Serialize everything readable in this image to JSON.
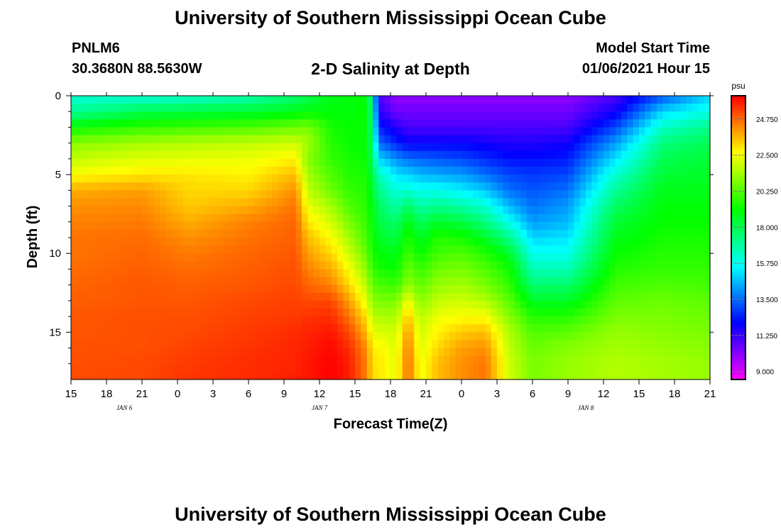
{
  "header": {
    "title_top": "University of Southern Mississippi Ocean Cube",
    "title_bottom": "University of Southern Mississippi Ocean Cube",
    "station_id": "PNLM6",
    "station_coords": "30.3680N 88.5630W",
    "plot_title": "2-D Salinity at Depth",
    "model_start_label": "Model Start Time",
    "model_start_value": "01/06/2021 Hour 15"
  },
  "chart_data": {
    "type": "heatmap",
    "title": "2-D Salinity at Depth",
    "xlabel": "Forecast Time(Z)",
    "ylabel": "Depth (ft)",
    "x_tick_labels": [
      "15",
      "18",
      "21",
      "0",
      "3",
      "6",
      "9",
      "12",
      "15",
      "18",
      "21",
      "0",
      "3",
      "6",
      "9",
      "12",
      "15",
      "18",
      "21"
    ],
    "date_labels": [
      {
        "label": "JAN 6",
        "tick_index": 1.5
      },
      {
        "label": "JAN 7",
        "tick_index": 7
      },
      {
        "label": "JAN 8",
        "tick_index": 14.5
      }
    ],
    "x_range_hours": [
      0,
      54
    ],
    "y_ticks": [
      0,
      5,
      10,
      15
    ],
    "ylim": [
      0,
      18
    ],
    "colorbar": {
      "unit": "psu",
      "range": [
        8.5,
        26.2
      ],
      "tick_values": [
        9.0,
        11.25,
        13.5,
        15.75,
        18.0,
        20.25,
        22.5,
        24.75
      ],
      "tick_labels": [
        "9.000",
        "11.250",
        "13.500",
        "15.750",
        "18.000",
        "20.250",
        "22.500",
        "24.750"
      ]
    },
    "depths_ft": [
      0,
      1,
      2,
      3,
      4,
      5,
      6,
      7,
      8,
      9,
      10,
      11,
      12,
      13,
      14,
      15,
      16,
      17,
      18
    ],
    "columns": [
      {
        "hour": 0,
        "profile": [
          16.2,
          17.0,
          19.2,
          21.0,
          21.8,
          22.6,
          23.8,
          24.2,
          24.4,
          24.6,
          24.6,
          24.7,
          24.8,
          24.9,
          25.0,
          25.0,
          25.1,
          25.1,
          25.2
        ]
      },
      {
        "hour": 6,
        "profile": [
          16.0,
          18.0,
          19.8,
          21.4,
          22.2,
          23.0,
          24.0,
          24.3,
          24.5,
          24.7,
          24.8,
          24.9,
          25.0,
          25.0,
          25.1,
          25.1,
          25.1,
          25.2,
          25.2
        ]
      },
      {
        "hour": 10,
        "profile": [
          16.2,
          18.2,
          20.0,
          21.6,
          22.3,
          23.0,
          23.2,
          23.4,
          23.8,
          24.2,
          24.5,
          24.7,
          24.9,
          25.0,
          25.1,
          25.2,
          25.3,
          25.4,
          25.5
        ]
      },
      {
        "hour": 15,
        "profile": [
          16.6,
          18.4,
          20.2,
          21.8,
          22.4,
          22.8,
          23.2,
          23.8,
          24.4,
          24.6,
          24.8,
          24.9,
          25.0,
          25.2,
          25.3,
          25.4,
          25.5,
          25.6,
          25.6
        ]
      },
      {
        "hour": 19,
        "profile": [
          17.6,
          18.8,
          20.6,
          22.0,
          22.8,
          23.6,
          24.2,
          24.6,
          24.8,
          24.9,
          25.0,
          25.1,
          25.2,
          25.3,
          25.4,
          25.6,
          25.7,
          25.7,
          25.8
        ]
      },
      {
        "hour": 20,
        "profile": [
          18.0,
          19.0,
          20.8,
          21.4,
          21.0,
          21.4,
          21.8,
          22.4,
          23.0,
          23.6,
          24.0,
          24.4,
          24.8,
          25.2,
          25.5,
          25.7,
          25.8,
          25.9,
          25.9
        ]
      },
      {
        "hour": 22,
        "profile": [
          18.8,
          19.0,
          19.4,
          19.6,
          19.8,
          20.2,
          20.6,
          21.4,
          22.0,
          22.6,
          23.2,
          23.8,
          24.4,
          25.2,
          25.6,
          25.9,
          26.1,
          26.2,
          26.2
        ]
      },
      {
        "hour": 23.5,
        "profile": [
          19.0,
          19.0,
          19.2,
          19.2,
          19.4,
          19.6,
          19.8,
          20.2,
          20.8,
          21.4,
          22.0,
          22.6,
          23.2,
          24.0,
          24.6,
          25.2,
          25.6,
          25.8,
          25.8
        ]
      },
      {
        "hour": 25,
        "profile": [
          19.0,
          19.2,
          19.2,
          19.2,
          19.2,
          19.4,
          19.6,
          19.6,
          19.8,
          20.0,
          20.4,
          21.0,
          21.6,
          22.2,
          23.0,
          23.6,
          24.2,
          24.4,
          24.4
        ]
      },
      {
        "hour": 25.5,
        "profile": [
          16.5,
          16.8,
          17.0,
          17.2,
          17.6,
          18.0,
          18.4,
          18.8,
          19.0,
          19.2,
          19.4,
          19.8,
          20.4,
          21.0,
          21.6,
          22.2,
          22.8,
          23.0,
          23.0
        ]
      },
      {
        "hour": 26,
        "profile": [
          11.0,
          11.5,
          12.5,
          13.5,
          15.0,
          16.5,
          17.2,
          17.8,
          18.2,
          18.6,
          19.0,
          19.4,
          20.2,
          20.8,
          21.6,
          22.2,
          22.8,
          23.0,
          23.0
        ]
      },
      {
        "hour": 27.5,
        "profile": [
          10.0,
          10.5,
          11.5,
          12.5,
          14.0,
          15.2,
          16.0,
          16.8,
          17.6,
          18.2,
          18.8,
          19.2,
          19.8,
          20.8,
          21.4,
          22.0,
          22.2,
          22.3,
          22.3
        ]
      },
      {
        "hour": 28.5,
        "profile": [
          10.0,
          10.5,
          11.0,
          12.0,
          13.5,
          15.0,
          16.2,
          17.8,
          19.0,
          19.6,
          20.0,
          20.6,
          21.2,
          22.6,
          23.6,
          24.2,
          24.6,
          24.8,
          24.8
        ]
      },
      {
        "hour": 29.5,
        "profile": [
          10.0,
          10.5,
          11.0,
          12.0,
          13.4,
          14.6,
          15.8,
          16.8,
          17.8,
          18.6,
          19.2,
          19.8,
          20.4,
          21.0,
          21.6,
          22.0,
          22.2,
          22.4,
          22.4
        ]
      },
      {
        "hour": 31,
        "profile": [
          10.0,
          10.5,
          11.0,
          12.0,
          13.2,
          14.4,
          15.8,
          17.2,
          18.6,
          19.6,
          20.0,
          20.6,
          21.2,
          21.8,
          22.4,
          22.8,
          23.2,
          23.6,
          23.6
        ]
      },
      {
        "hour": 33,
        "profile": [
          10.0,
          10.5,
          11.0,
          12.0,
          13.0,
          14.2,
          15.4,
          16.8,
          18.2,
          19.4,
          20.2,
          20.8,
          21.4,
          22.0,
          22.6,
          23.4,
          24.0,
          24.2,
          24.2
        ]
      },
      {
        "hour": 35,
        "profile": [
          10.0,
          10.5,
          11.0,
          11.8,
          12.6,
          13.6,
          14.8,
          16.2,
          17.4,
          18.6,
          19.6,
          20.2,
          20.8,
          21.6,
          22.6,
          23.6,
          24.2,
          24.6,
          24.6
        ]
      },
      {
        "hour": 37,
        "profile": [
          10.0,
          10.5,
          11.0,
          11.6,
          12.2,
          13.0,
          13.6,
          14.6,
          15.8,
          17.2,
          18.6,
          19.4,
          19.8,
          20.4,
          21.0,
          21.6,
          21.8,
          22.0,
          22.0
        ]
      },
      {
        "hour": 39,
        "profile": [
          10.0,
          10.5,
          11.0,
          11.6,
          12.2,
          12.8,
          13.2,
          13.6,
          14.2,
          15.0,
          15.8,
          16.6,
          17.6,
          18.6,
          19.6,
          20.2,
          20.6,
          20.8,
          20.8
        ]
      },
      {
        "hour": 42,
        "profile": [
          10.0,
          10.5,
          11.0,
          11.8,
          12.4,
          13.0,
          13.6,
          14.2,
          14.6,
          15.2,
          15.8,
          16.6,
          17.6,
          18.6,
          19.6,
          20.4,
          21.0,
          21.2,
          21.2
        ]
      },
      {
        "hour": 46,
        "profile": [
          11.0,
          11.8,
          13.0,
          14.2,
          15.2,
          16.2,
          17.0,
          17.8,
          18.4,
          18.8,
          19.2,
          19.6,
          20.0,
          20.4,
          20.8,
          21.2,
          21.4,
          21.6,
          21.6
        ]
      },
      {
        "hour": 50,
        "profile": [
          13.2,
          15.0,
          16.4,
          17.4,
          18.0,
          18.4,
          18.8,
          19.0,
          19.2,
          19.4,
          19.6,
          19.8,
          20.2,
          20.6,
          20.8,
          21.0,
          21.2,
          21.4,
          21.4
        ]
      },
      {
        "hour": 54,
        "profile": [
          15.0,
          16.0,
          17.2,
          18.0,
          18.4,
          18.6,
          18.8,
          19.0,
          19.2,
          19.4,
          19.6,
          19.8,
          20.0,
          20.4,
          20.6,
          20.8,
          21.0,
          21.2,
          21.2
        ]
      }
    ]
  }
}
